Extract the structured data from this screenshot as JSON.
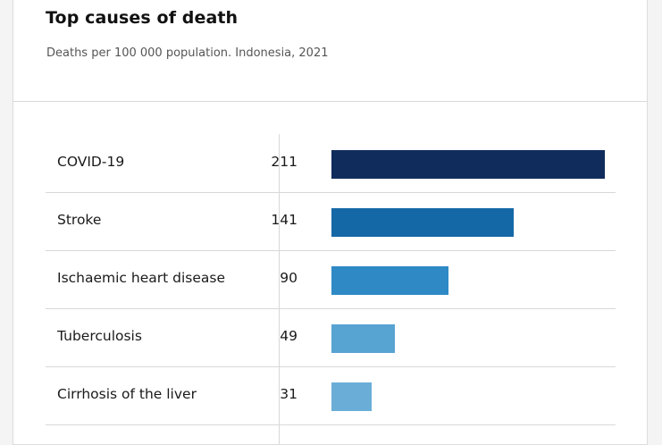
{
  "chart_data": {
    "type": "bar",
    "orientation": "horizontal",
    "title": "Top causes of death",
    "subtitle": "Deaths per 100 000 population. Indonesia, 2021",
    "categories": [
      "COVID-19",
      "Stroke",
      "Ischaemic heart disease",
      "Tuberculosis",
      "Cirrhosis of the liver"
    ],
    "values": [
      211,
      141,
      90,
      49,
      31
    ],
    "labels": [
      "211",
      "141",
      "90",
      "49",
      "31"
    ],
    "colors": [
      "#0f2c5c",
      "#1568a6",
      "#2f89c5",
      "#57a3d2",
      "#6aaed8"
    ],
    "xlim": [
      0,
      211
    ],
    "grid": false,
    "xlabel": "",
    "ylabel": ""
  }
}
